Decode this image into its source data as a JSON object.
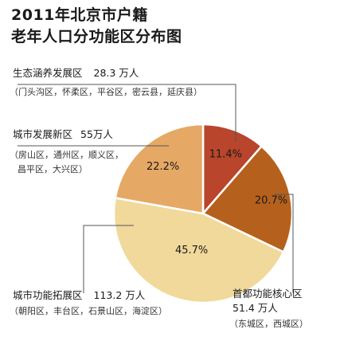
{
  "title_line1": "2011年北京市户籍",
  "title_line2": "老年人口分功能区分布图",
  "chart_data": {
    "type": "pie",
    "title": "2011年北京市户籍老年人口分功能区分布图",
    "slices": [
      {
        "label": "生态涵养发展区",
        "value": 28.3,
        "unit": "万人",
        "percent": 11.4,
        "percent_label": "11.4%",
        "districts": "（门头沟区，怀柔区，平谷区，密云县，延庆县）",
        "color": "#b8452c"
      },
      {
        "label": "首都功能核心区",
        "value": 51.4,
        "unit": "万人",
        "percent": 20.7,
        "percent_label": "20.7%",
        "districts": "（东城区，西城区）",
        "color": "#b5611d"
      },
      {
        "label": "城市功能拓展区",
        "value": 113.2,
        "unit": "万人",
        "percent": 45.7,
        "percent_label": "45.7%",
        "districts": "（朝阳区，丰台区，石景山区，海淀区）",
        "color": "#f0d99a"
      },
      {
        "label": "城市发展新区",
        "value": 55,
        "unit": "万人",
        "percent": 22.2,
        "percent_label": "22.2%",
        "districts_line1": "（房山区，通州区，顺义区，",
        "districts_line2": "昌平区，大兴区）",
        "color": "#e6a865"
      }
    ]
  },
  "annotations": {
    "eco": {
      "name": "生态涵养发展区",
      "value_text": "28.3 万人",
      "sub": "（门头沟区，怀柔区，平谷区，密云县，延庆县）"
    },
    "newdev": {
      "name": "城市发展新区",
      "value_text": "55万人",
      "sub1": "（房山区，通州区，顺义区，",
      "sub2": "昌平区，大兴区）"
    },
    "core": {
      "name": "首都功能核心区",
      "value_text": "51.4 万人",
      "sub": "（东城区，西城区）"
    },
    "expand": {
      "name": "城市功能拓展区",
      "value_text": "113.2 万人",
      "sub": "（朝阳区，丰台区，石景山区，海淀区）"
    }
  }
}
